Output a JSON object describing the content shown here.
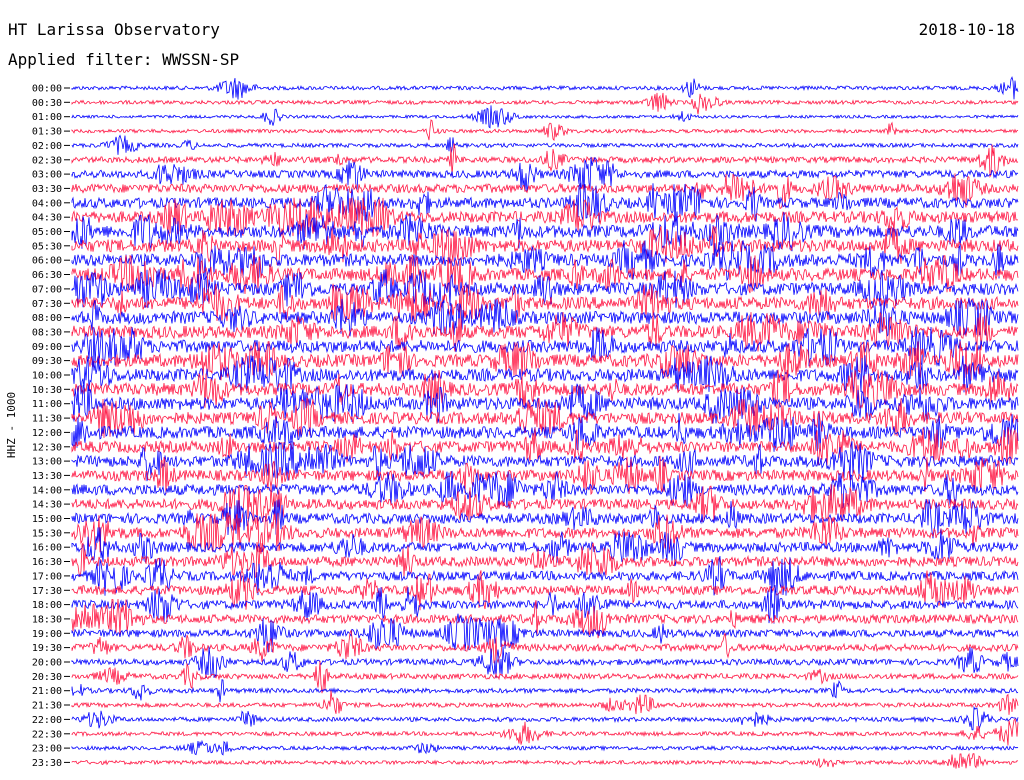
{
  "header": {
    "station": "HT Larissa Observatory",
    "date": "2018-10-18",
    "filter": "Applied filter: WWSSN-SP"
  },
  "chart_data": {
    "type": "line",
    "ylabel": "HHZ - 1000",
    "trace_colors": [
      "#0000ff",
      "#ff1744"
    ],
    "rows": [
      {
        "time": "00:00",
        "activity": 0.2
      },
      {
        "time": "00:30",
        "activity": 0.2
      },
      {
        "time": "01:00",
        "activity": 0.12
      },
      {
        "time": "01:30",
        "activity": 0.18
      },
      {
        "time": "02:00",
        "activity": 0.22
      },
      {
        "time": "02:30",
        "activity": 0.4
      },
      {
        "time": "03:00",
        "activity": 0.55
      },
      {
        "time": "03:30",
        "activity": 0.65
      },
      {
        "time": "04:00",
        "activity": 0.8
      },
      {
        "time": "04:30",
        "activity": 0.9
      },
      {
        "time": "05:00",
        "activity": 1.0
      },
      {
        "time": "05:30",
        "activity": 1.0
      },
      {
        "time": "06:00",
        "activity": 1.0
      },
      {
        "time": "06:30",
        "activity": 1.0
      },
      {
        "time": "07:00",
        "activity": 1.0
      },
      {
        "time": "07:30",
        "activity": 1.0
      },
      {
        "time": "08:00",
        "activity": 1.0
      },
      {
        "time": "08:30",
        "activity": 1.0
      },
      {
        "time": "09:00",
        "activity": 1.0
      },
      {
        "time": "09:30",
        "activity": 1.0
      },
      {
        "time": "10:00",
        "activity": 1.0
      },
      {
        "time": "10:30",
        "activity": 1.0
      },
      {
        "time": "11:00",
        "activity": 1.0
      },
      {
        "time": "11:30",
        "activity": 0.95
      },
      {
        "time": "12:00",
        "activity": 0.95
      },
      {
        "time": "12:30",
        "activity": 0.9
      },
      {
        "time": "13:00",
        "activity": 0.9
      },
      {
        "time": "13:30",
        "activity": 0.85
      },
      {
        "time": "14:00",
        "activity": 0.85
      },
      {
        "time": "14:30",
        "activity": 0.8
      },
      {
        "time": "15:00",
        "activity": 0.8
      },
      {
        "time": "15:30",
        "activity": 0.8
      },
      {
        "time": "16:00",
        "activity": 0.75
      },
      {
        "time": "16:30",
        "activity": 0.75
      },
      {
        "time": "17:00",
        "activity": 0.7
      },
      {
        "time": "17:30",
        "activity": 0.7
      },
      {
        "time": "18:00",
        "activity": 0.65
      },
      {
        "time": "18:30",
        "activity": 0.65
      },
      {
        "time": "19:00",
        "activity": 0.55
      },
      {
        "time": "19:30",
        "activity": 0.5
      },
      {
        "time": "20:00",
        "activity": 0.4
      },
      {
        "time": "20:30",
        "activity": 0.35
      },
      {
        "time": "21:00",
        "activity": 0.28
      },
      {
        "time": "21:30",
        "activity": 0.25
      },
      {
        "time": "22:00",
        "activity": 0.25
      },
      {
        "time": "22:30",
        "activity": 0.22
      },
      {
        "time": "23:00",
        "activity": 0.2
      },
      {
        "time": "23:30",
        "activity": 0.2
      }
    ]
  }
}
